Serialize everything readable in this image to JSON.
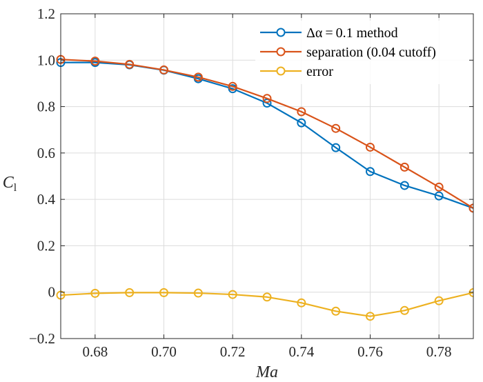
{
  "chart_data": {
    "type": "line",
    "title": "",
    "xlabel": "Ma",
    "ylabel": "C",
    "ylabel_sub": "l",
    "xlim": [
      0.67,
      0.79
    ],
    "ylim": [
      -0.2,
      1.2
    ],
    "grid": true,
    "legend_position": "top-right",
    "x": [
      0.67,
      0.68,
      0.69,
      0.7,
      0.71,
      0.72,
      0.73,
      0.74,
      0.75,
      0.76,
      0.77,
      0.78,
      0.79
    ],
    "x_ticks": [
      {
        "value": 0.68,
        "label": "0.68"
      },
      {
        "value": 0.7,
        "label": "0.70"
      },
      {
        "value": 0.72,
        "label": "0.72"
      },
      {
        "value": 0.74,
        "label": "0.74"
      },
      {
        "value": 0.76,
        "label": "0.76"
      },
      {
        "value": 0.78,
        "label": "0.78"
      }
    ],
    "y_ticks": [
      {
        "value": -0.2,
        "label": "−0.2"
      },
      {
        "value": 0,
        "label": "0"
      },
      {
        "value": 0.2,
        "label": "0.2"
      },
      {
        "value": 0.4,
        "label": "0.4"
      },
      {
        "value": 0.6,
        "label": "0.6"
      },
      {
        "value": 0.8,
        "label": "0.8"
      },
      {
        "value": 1.0,
        "label": "1.0"
      },
      {
        "value": 1.2,
        "label": "1.2"
      }
    ],
    "series": [
      {
        "name": "Δα = 0.1  method",
        "color": "#0072BD",
        "values": [
          0.99,
          0.99,
          0.98,
          0.957,
          0.92,
          0.877,
          0.815,
          0.73,
          0.623,
          0.52,
          0.46,
          0.415,
          0.362
        ]
      },
      {
        "name": "separation (0.04 cutoff)",
        "color": "#D95319",
        "values": [
          1.003,
          0.996,
          0.982,
          0.958,
          0.927,
          0.887,
          0.835,
          0.778,
          0.706,
          0.625,
          0.539,
          0.453,
          0.362
        ]
      },
      {
        "name": "error",
        "color": "#EDB120",
        "values": [
          -0.013,
          -0.005,
          -0.002,
          -0.002,
          -0.004,
          -0.01,
          -0.021,
          -0.046,
          -0.082,
          -0.104,
          -0.079,
          -0.037,
          -0.002
        ]
      }
    ]
  }
}
